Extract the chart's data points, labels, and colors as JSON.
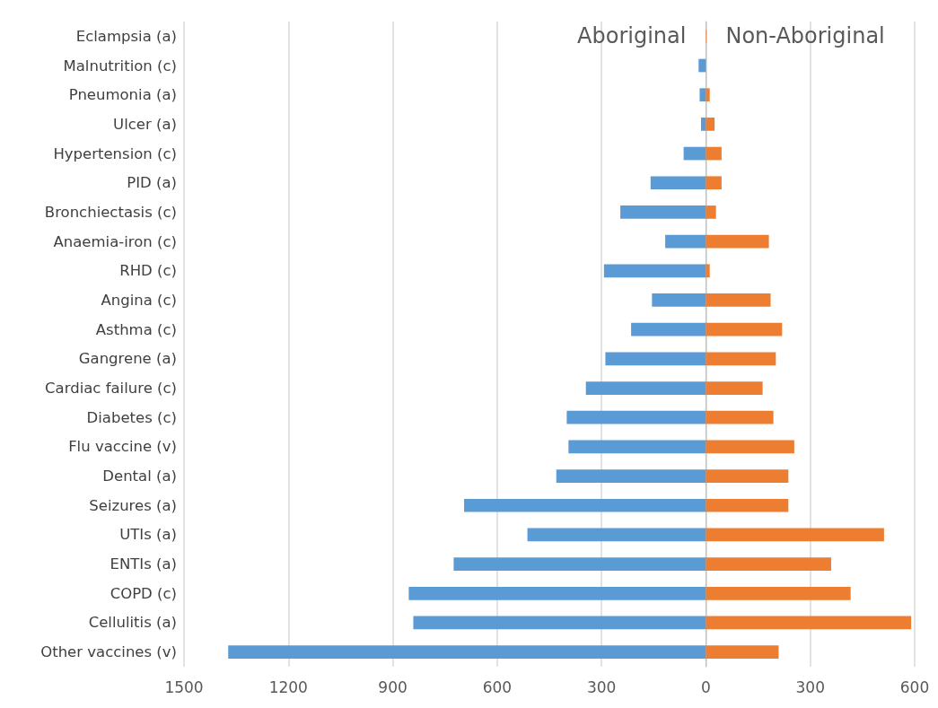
{
  "chart_data": {
    "type": "bar",
    "orientation": "horizontal",
    "stacked": true,
    "legend": false,
    "grid": "x",
    "categories": [
      "Eclampsia (a)",
      "Malnutrition (c)",
      "Pneumonia (a)",
      "Ulcer (a)",
      "Hypertension (c)",
      "PID (a)",
      "Bronchiectasis (c)",
      "Anaemia-iron (c)",
      "RHD (c)",
      "Angina (c)",
      "Asthma (c)",
      "Gangrene (a)",
      "Cardiac failure (c)",
      "Diabetes (c)",
      "Flu vaccine (v)",
      "Dental (a)",
      "Seizures (a)",
      "UTIs (a)",
      "ENTIs (a)",
      "COPD (c)",
      "Cellulitis (a)",
      "Other vaccines (v)"
    ],
    "series": [
      {
        "name": "Aboriginal",
        "color": "#5b9bd5",
        "values": [
          0,
          -21,
          -18,
          -14,
          -64,
          -159,
          -246,
          -117,
          -293,
          -155,
          -215,
          -289,
          -345,
          -400,
          -395,
          -430,
          -695,
          -513,
          -725,
          -854,
          -841,
          -1373
        ]
      },
      {
        "name": "Non-Aboriginal",
        "color": "#ed7d31",
        "values": [
          2,
          0,
          11,
          25,
          45,
          45,
          29,
          181,
          11,
          186,
          219,
          201,
          163,
          194,
          254,
          237,
          237,
          512,
          360,
          416,
          590,
          209
        ]
      }
    ],
    "xlim": [
      -1500,
      600
    ],
    "xticks": [
      {
        "value": -1500,
        "label": "1500"
      },
      {
        "value": -1200,
        "label": "1200"
      },
      {
        "value": -900,
        "label": "900"
      },
      {
        "value": -600,
        "label": "600"
      },
      {
        "value": -300,
        "label": "300"
      },
      0,
      300,
      600
    ]
  }
}
